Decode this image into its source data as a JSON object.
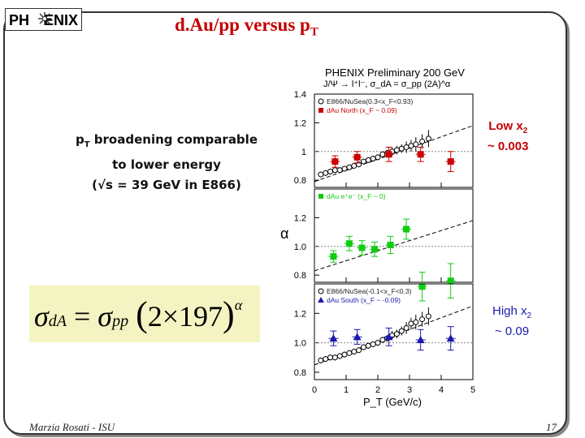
{
  "slide": {
    "logo_left": "PH",
    "logo_right": "ENIX",
    "title_main": "d.Au/pp versus p",
    "title_sub": "T",
    "left_line1a": "p",
    "left_line1sub": "T",
    "left_line1b": " broadening comparable",
    "left_line2": "to lower energy",
    "left_line3": "(√s = 39 GeV in E866)",
    "formula": {
      "sigma1": "σ",
      "sub1": "dA",
      "eq": " = ",
      "sigma2": "σ",
      "sub2": "pp",
      "paren_open": "(",
      "body": "2×197",
      "paren_close": ")",
      "exp": "α"
    },
    "note_low_a": "Low x",
    "note_low_sub": "2",
    "note_low_b": "~ 0.003",
    "note_high_a": "High x",
    "note_high_sub": "2",
    "note_high_b": "~ 0.09",
    "footer_author": "Marzia Rosati -  ISU",
    "page_number": "17"
  },
  "chart_data": {
    "type": "scatter",
    "header_line1": "PHENIX Preliminary  200 GeV",
    "header_line2": "J/Ψ → l⁺l⁻,  σ_dA = σ_pp (2A)^α",
    "xlabel": "P_T (GeV/c)",
    "ylabel": "α",
    "xlim": [
      0,
      5
    ],
    "x_ticks": [
      "0",
      "1",
      "2",
      "3",
      "4",
      "5"
    ],
    "panels": [
      {
        "name": "top",
        "ylim": [
          0.75,
          1.4
        ],
        "y_ticks": [
          "1.4",
          "1.2",
          "1",
          "0.8"
        ],
        "y_tick_values": [
          1.4,
          1.2,
          1.0,
          0.8
        ],
        "legend": [
          "E866/NuSea(0.3<x_F<0.93)",
          "dAu North (x_F ~ 0.09)"
        ],
        "series": [
          {
            "name": "E866/NuSea(0.3<x_F<0.93)",
            "color": "#000000",
            "marker": "open-circle",
            "x": [
              0.2,
              0.35,
              0.5,
              0.65,
              0.8,
              0.95,
              1.1,
              1.25,
              1.4,
              1.55,
              1.7,
              1.85,
              2.0,
              2.15,
              2.3,
              2.45,
              2.6,
              2.75,
              2.9,
              3.05,
              3.2,
              3.4,
              3.6
            ],
            "y": [
              0.84,
              0.85,
              0.86,
              0.87,
              0.87,
              0.88,
              0.89,
              0.9,
              0.91,
              0.93,
              0.94,
              0.95,
              0.96,
              0.98,
              0.99,
              1.0,
              1.01,
              1.02,
              1.03,
              1.04,
              1.05,
              1.07,
              1.09
            ],
            "err": [
              0.02,
              0.02,
              0.02,
              0.02,
              0.02,
              0.02,
              0.02,
              0.02,
              0.02,
              0.02,
              0.02,
              0.02,
              0.02,
              0.02,
              0.02,
              0.03,
              0.03,
              0.03,
              0.04,
              0.04,
              0.05,
              0.05,
              0.06
            ]
          },
          {
            "name": "dAu North (x_F ~ 0.09)",
            "color": "#cc0000",
            "marker": "square",
            "x": [
              0.65,
              1.35,
              2.35,
              3.35,
              4.3
            ],
            "y": [
              0.93,
              0.96,
              0.98,
              0.98,
              0.93
            ],
            "err": [
              0.04,
              0.04,
              0.05,
              0.05,
              0.07
            ]
          }
        ],
        "trend": {
          "x": [
            0,
            5
          ],
          "y": [
            0.79,
            1.18
          ]
        }
      },
      {
        "name": "middle",
        "ylim": [
          0.75,
          1.4
        ],
        "y_ticks": [
          "1.2",
          "1.0",
          "0.8"
        ],
        "y_tick_values": [
          1.2,
          1.0,
          0.8
        ],
        "legend": [
          "dAu e⁺e⁻ (x_F ~ 0)"
        ],
        "series": [
          {
            "name": "dAu e⁺e⁻ (x_F ~ 0)",
            "color": "#11cc11",
            "marker": "square",
            "x": [
              0.6,
              1.1,
              1.5,
              1.9,
              2.4,
              2.9,
              3.4,
              4.3
            ],
            "y": [
              0.93,
              1.02,
              0.99,
              0.98,
              1.01,
              1.12,
              0.72,
              0.76
            ],
            "err": [
              0.04,
              0.05,
              0.05,
              0.05,
              0.06,
              0.07,
              0.1,
              0.12
            ]
          }
        ],
        "trend": {
          "x": [
            0,
            5
          ],
          "y": [
            0.83,
            1.18
          ]
        }
      },
      {
        "name": "bottom",
        "ylim": [
          0.75,
          1.4
        ],
        "y_ticks": [
          "1.2",
          "1.0",
          "0.8"
        ],
        "y_tick_values": [
          1.2,
          1.0,
          0.8
        ],
        "legend": [
          "E866/NuSea(-0.1<x_F<0.3)",
          "dAu South (x_F ~ -0.09)"
        ],
        "series": [
          {
            "name": "E866/NuSea(-0.1<x_F<0.3)",
            "color": "#000000",
            "marker": "open-circle",
            "x": [
              0.2,
              0.35,
              0.5,
              0.65,
              0.8,
              0.95,
              1.1,
              1.25,
              1.4,
              1.55,
              1.7,
              1.85,
              2.0,
              2.15,
              2.3,
              2.45,
              2.6,
              2.75,
              2.9,
              3.05,
              3.2,
              3.4,
              3.6
            ],
            "y": [
              0.88,
              0.89,
              0.9,
              0.9,
              0.91,
              0.92,
              0.93,
              0.94,
              0.95,
              0.97,
              0.98,
              0.99,
              1.0,
              1.02,
              1.03,
              1.05,
              1.06,
              1.08,
              1.1,
              1.13,
              1.14,
              1.16,
              1.18
            ],
            "err": [
              0.02,
              0.02,
              0.02,
              0.02,
              0.02,
              0.02,
              0.02,
              0.02,
              0.02,
              0.02,
              0.02,
              0.02,
              0.02,
              0.02,
              0.02,
              0.03,
              0.03,
              0.03,
              0.04,
              0.04,
              0.05,
              0.05,
              0.06
            ]
          },
          {
            "name": "dAu South (x_F ~ -0.09)",
            "color": "#1a1ab0",
            "marker": "triangle",
            "x": [
              0.6,
              1.35,
              2.35,
              3.35,
              4.3
            ],
            "y": [
              1.03,
              1.04,
              1.04,
              1.02,
              1.03
            ],
            "err": [
              0.05,
              0.05,
              0.06,
              0.07,
              0.08
            ]
          }
        ],
        "trend": {
          "x": [
            0,
            5
          ],
          "y": [
            0.85,
            1.25
          ]
        }
      }
    ]
  }
}
